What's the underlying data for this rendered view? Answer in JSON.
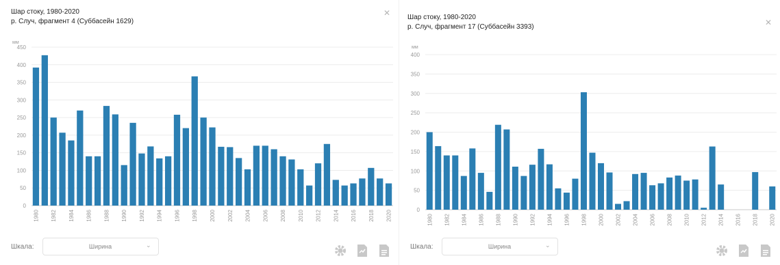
{
  "colors": {
    "bar": "#2b7fb3",
    "grid": "#ececec",
    "axis": "#c8c8c8",
    "tick_text": "#999999",
    "icon": "#c8c8c8"
  },
  "panels": [
    {
      "title_line1": "Шар стоку, 1980-2020",
      "title_line2": "р. Случ, фрагмент 4 (Суббасейн 1629)",
      "scale_label": "Шкала:",
      "scale_value": "Ширина",
      "tools": [
        "gear-icon",
        "export-icon",
        "document-icon"
      ]
    },
    {
      "title_line1": "Шар стоку, 1980-2020",
      "title_line2": "р. Случ, фрагмент 17 (Суббасейн 3393)",
      "scale_label": "Шкала:",
      "scale_value": "Ширина",
      "tools": [
        "gear-icon",
        "export-icon",
        "document-icon"
      ]
    }
  ],
  "chart_data": [
    {
      "type": "bar",
      "ylabel": "мм",
      "ylim": [
        0,
        450
      ],
      "yticks": [
        0,
        50,
        100,
        150,
        200,
        250,
        300,
        350,
        400,
        450
      ],
      "categories": [
        "1980",
        "1981",
        "1982",
        "1983",
        "1984",
        "1985",
        "1986",
        "1987",
        "1988",
        "1989",
        "1990",
        "1991",
        "1992",
        "1993",
        "1994",
        "1995",
        "1996",
        "1997",
        "1998",
        "1999",
        "2000",
        "2001",
        "2002",
        "2003",
        "2004",
        "2005",
        "2006",
        "2007",
        "2008",
        "2009",
        "2010",
        "2011",
        "2012",
        "2013",
        "2014",
        "2015",
        "2016",
        "2017",
        "2018",
        "2019",
        "2020"
      ],
      "xtick_labels": [
        "1980",
        "1982",
        "1984",
        "1986",
        "1988",
        "1990",
        "1992",
        "1994",
        "1996",
        "1998",
        "2000",
        "2002",
        "2004",
        "2006",
        "2008",
        "2010",
        "2012",
        "2014",
        "2016",
        "2018",
        "2020"
      ],
      "values": [
        392,
        427,
        250,
        207,
        185,
        270,
        140,
        140,
        283,
        259,
        115,
        235,
        148,
        168,
        134,
        140,
        258,
        220,
        367,
        250,
        222,
        167,
        166,
        135,
        103,
        170,
        170,
        160,
        140,
        131,
        103,
        57,
        120,
        175,
        73,
        57,
        63,
        77,
        107,
        77,
        63
      ],
      "grid": true
    },
    {
      "type": "bar",
      "ylabel": "мм",
      "ylim": [
        0,
        400
      ],
      "yticks": [
        0,
        50,
        100,
        150,
        200,
        250,
        300,
        350,
        400
      ],
      "categories": [
        "1980",
        "1981",
        "1982",
        "1983",
        "1984",
        "1985",
        "1986",
        "1987",
        "1988",
        "1989",
        "1990",
        "1991",
        "1992",
        "1993",
        "1994",
        "1995",
        "1996",
        "1997",
        "1998",
        "1999",
        "2000",
        "2001",
        "2002",
        "2003",
        "2004",
        "2005",
        "2006",
        "2007",
        "2008",
        "2009",
        "2010",
        "2011",
        "2012",
        "2013",
        "2014",
        "2015",
        "2016",
        "2017",
        "2018",
        "2019",
        "2020"
      ],
      "xtick_labels": [
        "1980",
        "1982",
        "1984",
        "1986",
        "1988",
        "1990",
        "1992",
        "1994",
        "1996",
        "1998",
        "2000",
        "2002",
        "2004",
        "2006",
        "2008",
        "2010",
        "2012",
        "2014",
        "2016",
        "2018",
        "2020"
      ],
      "values": [
        200,
        164,
        140,
        140,
        87,
        158,
        95,
        46,
        219,
        207,
        111,
        87,
        116,
        157,
        117,
        55,
        44,
        80,
        303,
        147,
        120,
        96,
        15,
        22,
        92,
        95,
        63,
        68,
        83,
        88,
        75,
        78,
        5,
        163,
        65,
        -11,
        0,
        0,
        97,
        0,
        60
      ],
      "grid": true
    }
  ]
}
